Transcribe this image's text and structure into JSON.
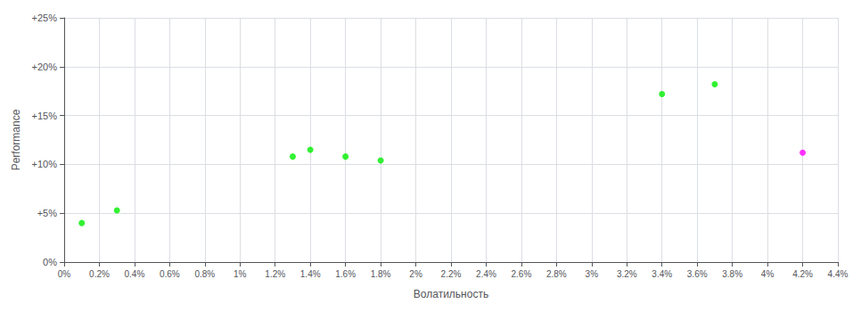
{
  "chart_data": {
    "type": "scatter",
    "xlabel": "Волатильность",
    "ylabel": "Performance",
    "x": [
      0.001,
      0.003,
      0.013,
      0.014,
      0.016,
      0.018,
      0.034,
      0.037,
      0.042
    ],
    "values": [
      0.04,
      0.053,
      0.108,
      0.115,
      0.108,
      0.104,
      0.172,
      0.182,
      0.112
    ],
    "colors": [
      "#00ee00",
      "#00ee00",
      "#00ee00",
      "#00ee00",
      "#00ee00",
      "#00ee00",
      "#00ee00",
      "#00ee00",
      "#ff00ff"
    ],
    "xlim": [
      0,
      0.044
    ],
    "ylim": [
      0,
      0.25
    ],
    "xticks": [
      {
        "value": 0,
        "label": "0%"
      },
      {
        "value": 0.002,
        "label": "0.2%"
      },
      {
        "value": 0.004,
        "label": "0.4%"
      },
      {
        "value": 0.006,
        "label": "0.6%"
      },
      {
        "value": 0.008,
        "label": "0.8%"
      },
      {
        "value": 0.01,
        "label": "1%"
      },
      {
        "value": 0.012,
        "label": "1.2%"
      },
      {
        "value": 0.014,
        "label": "1.4%"
      },
      {
        "value": 0.016,
        "label": "1.6%"
      },
      {
        "value": 0.018,
        "label": "1.8%"
      },
      {
        "value": 0.02,
        "label": "2%"
      },
      {
        "value": 0.022,
        "label": "2.2%"
      },
      {
        "value": 0.024,
        "label": "2.4%"
      },
      {
        "value": 0.026,
        "label": "2.6%"
      },
      {
        "value": 0.028,
        "label": "2.8%"
      },
      {
        "value": 0.03,
        "label": "3%"
      },
      {
        "value": 0.032,
        "label": "3.2%"
      },
      {
        "value": 0.034,
        "label": "3.4%"
      },
      {
        "value": 0.036,
        "label": "3.6%"
      },
      {
        "value": 0.038,
        "label": "3.8%"
      },
      {
        "value": 0.04,
        "label": "4%"
      },
      {
        "value": 0.042,
        "label": "4.2%"
      },
      {
        "value": 0.044,
        "label": "4.4%"
      }
    ],
    "yticks": [
      {
        "value": 0,
        "label": "0%"
      },
      {
        "value": 0.05,
        "label": "+5%"
      },
      {
        "value": 0.1,
        "label": "+10%"
      },
      {
        "value": 0.15,
        "label": "+15%"
      },
      {
        "value": 0.2,
        "label": "+20%"
      },
      {
        "value": 0.25,
        "label": "+25%"
      }
    ],
    "grid": true
  }
}
